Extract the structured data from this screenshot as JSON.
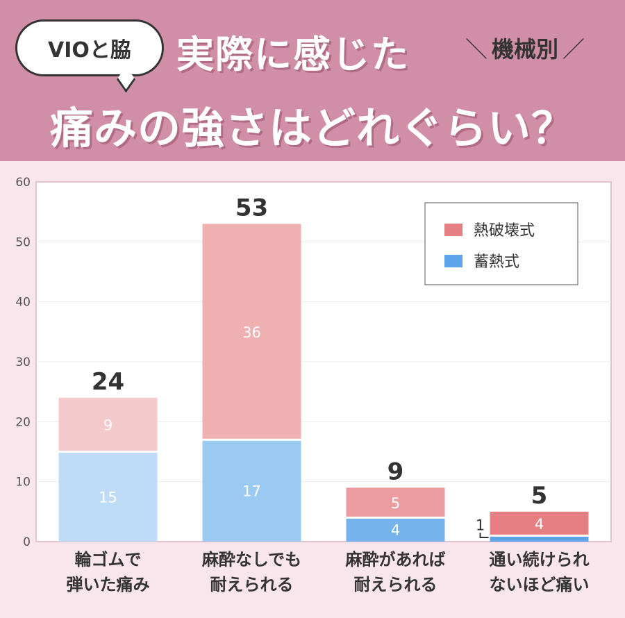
{
  "header": {
    "bubble": "VIOと脇",
    "title_line1": "実際に感じた",
    "tag": "機械別",
    "title_line2": "痛みの強さはどれぐらい？"
  },
  "colors": {
    "header_bg": "#d08fa6",
    "page_bg": "#f9e5ec",
    "heat_destruction": [
      "#f3c9cc",
      "#efb0b2",
      "#eb9c9f",
      "#e57f84"
    ],
    "heat_storage": [
      "#bfdcf6",
      "#9ac9f1",
      "#76b3ec",
      "#5ea4ea"
    ]
  },
  "chart_data": {
    "type": "bar",
    "stacked": true,
    "categories": [
      "輪ゴムで\n弾いた痛み",
      "麻酔なしでも\n耐えられる",
      "麻酔があれば\n耐えられる",
      "通い続けられ\nないほど痛い"
    ],
    "series": [
      {
        "name": "蓄熱式",
        "values": [
          15,
          17,
          4,
          1
        ]
      },
      {
        "name": "熱破壊式",
        "values": [
          9,
          36,
          5,
          4
        ]
      }
    ],
    "totals": [
      24,
      53,
      9,
      5
    ],
    "ylim": [
      0,
      60
    ],
    "yticks": [
      0,
      10,
      20,
      30,
      40,
      50,
      60
    ],
    "grid": true,
    "legend": "top-right",
    "legend_labels": [
      "熱破壊式",
      "蓄熱式"
    ],
    "title": "",
    "xlabel": "",
    "ylabel": ""
  }
}
